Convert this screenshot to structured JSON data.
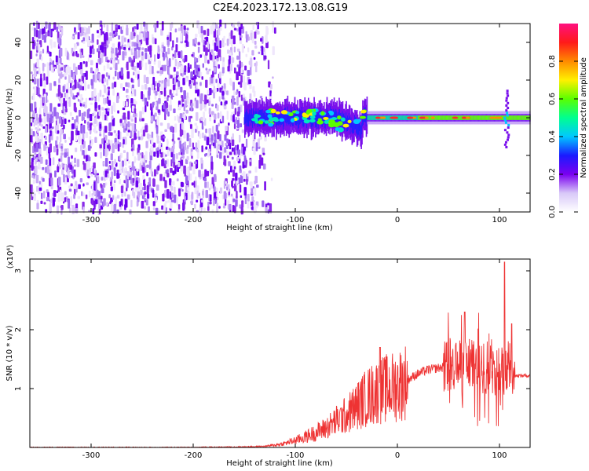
{
  "title": "C2E4.2023.172.13.08.G19",
  "chart_data": [
    {
      "type": "heatmap",
      "xlabel": "Height of straight line (km)",
      "ylabel": "Frequency (Hz)",
      "xlim": [
        -360,
        130
      ],
      "ylim": [
        -50,
        50
      ],
      "xticks": [
        -300,
        -200,
        -100,
        0,
        100
      ],
      "yticks": [
        -40,
        -20,
        0,
        20,
        40
      ],
      "colorbar": {
        "label": "Normalized spectral amplitude",
        "range": [
          0,
          1
        ],
        "ticks": [
          "0.0",
          "0.2",
          "0.4",
          "0.6",
          "0.8"
        ],
        "tick_values": [
          0.0,
          0.2,
          0.4,
          0.6,
          0.8
        ],
        "colors": [
          "#ffffff",
          "#d8c8f8",
          "#7a00f0",
          "#1a1aff",
          "#00c8ff",
          "#00ff90",
          "#5aff00",
          "#fff000",
          "#ff8a00",
          "#ff1a1a",
          "#ff1080"
        ]
      },
      "regions": [
        {
          "x_range": [
            -360,
            -125
          ],
          "freq_range": [
            -50,
            50
          ],
          "amplitude": "low (noise)",
          "dominant_color": "#8a20f0"
        },
        {
          "x_range": [
            -150,
            130
          ],
          "freq_center": 0,
          "freq_halfwidth": 6,
          "amplitude": "signal line near 0 Hz"
        }
      ]
    },
    {
      "type": "line",
      "xlabel": "Height of straight line (km)",
      "ylabel": "SNR (10 * v/v)",
      "y_multiplier": "(x10⁴)",
      "xlim": [
        -360,
        130
      ],
      "ylim": [
        0,
        3.2
      ],
      "xticks": [
        -300,
        -200,
        -100,
        0,
        100
      ],
      "yticks": [
        1,
        2,
        3
      ],
      "series": [
        {
          "color": "#ee3333",
          "x": [
            -360,
            -300,
            -250,
            -200,
            -150,
            -130,
            -120,
            -110,
            -100,
            -90,
            -80,
            -70,
            -60,
            -50,
            -40,
            -30,
            -20,
            -10,
            0,
            10,
            20,
            30,
            40,
            50,
            55,
            60,
            70,
            80,
            90,
            100,
            105,
            110,
            115,
            120,
            130
          ],
          "y": [
            0.0,
            0.0,
            0.0,
            0.0,
            0.01,
            0.02,
            0.04,
            0.07,
            0.12,
            0.18,
            0.25,
            0.33,
            0.45,
            0.55,
            0.7,
            0.85,
            0.95,
            1.0,
            1.05,
            1.15,
            1.25,
            1.32,
            1.35,
            1.37,
            1.38,
            1.37,
            1.4,
            1.35,
            1.33,
            1.3,
            1.35,
            1.45,
            1.22,
            1.22,
            1.22
          ],
          "peaks": [
            {
              "x": -17,
              "y": 1.7
            },
            {
              "x": 66,
              "y": 2.3
            },
            {
              "x": 105,
              "y": 3.15
            },
            {
              "x": 112,
              "y": 2.1
            }
          ]
        }
      ]
    }
  ]
}
